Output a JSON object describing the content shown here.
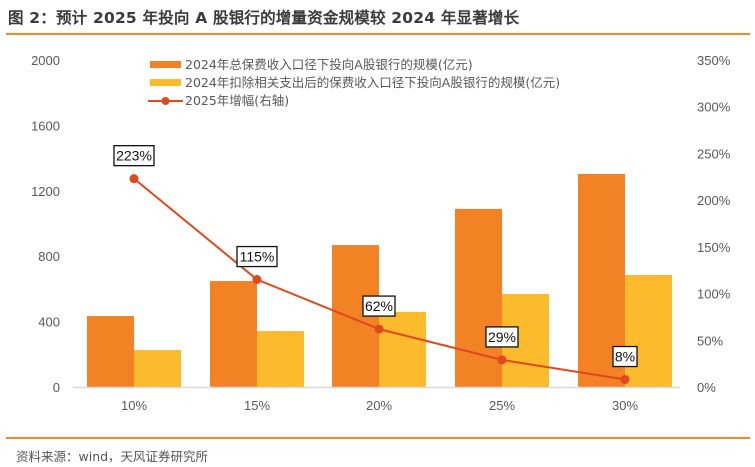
{
  "header": {
    "title": "图 2：预计 2025 年投向 A 股银行的增量资金规模较 2024 年显著增长"
  },
  "footer": {
    "source": "资料来源：wind，天风证券研究所"
  },
  "colors": {
    "series1": "#f28224",
    "series2": "#fbbb2c",
    "line": "#e0481e",
    "rule": "#f08a24"
  },
  "chart_data": {
    "type": "bar+line",
    "title": "图 2：预计 2025 年投向 A 股银行的增量资金规模较 2024 年显著增长",
    "categories": [
      "10%",
      "15%",
      "20%",
      "25%",
      "30%"
    ],
    "series": [
      {
        "name": "2024年总保费收入口径下投向A股银行的规模(亿元)",
        "type": "bar",
        "axis": "left",
        "values": [
          434,
          648,
          868,
          1089,
          1303
        ]
      },
      {
        "name": "2024年扣除相关支出后的保费收入口径下投向A股银行的规模(亿元)",
        "type": "bar",
        "axis": "left",
        "values": [
          226,
          342,
          459,
          569,
          685
        ]
      },
      {
        "name": "2025年增幅(右轴)",
        "type": "line",
        "axis": "right",
        "values": [
          223,
          115,
          62,
          29,
          8
        ],
        "labels": [
          "223%",
          "115%",
          "62%",
          "29%",
          "8%"
        ]
      }
    ],
    "left_axis": {
      "ylim": [
        0,
        2000
      ],
      "ticks": [
        "0",
        "400",
        "800",
        "1200",
        "1600",
        "2000"
      ]
    },
    "right_axis": {
      "ylim": [
        0,
        350
      ],
      "ticks": [
        "0%",
        "50%",
        "100%",
        "150%",
        "200%",
        "250%",
        "300%",
        "350%"
      ]
    },
    "xlabel": "",
    "ylabel": "",
    "grid": false,
    "legend_position": "top"
  }
}
